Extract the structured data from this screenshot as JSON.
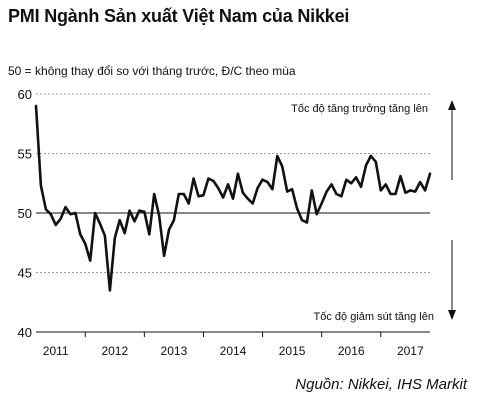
{
  "header": {
    "title": "PMI Ngành Sản xuất Việt Nam của Nikkei",
    "subtitle": "50 = không thay đổi so với tháng trước, Đ/C theo mùa"
  },
  "footer": {
    "source": "Nguồn: Nikkei, IHS Markit"
  },
  "colors": {
    "line": "#111111",
    "grid": "#9a9a9a",
    "baseline": "#111111",
    "arrow": "#111111"
  },
  "chart_data": {
    "type": "line",
    "title": "PMI Ngành Sản xuất Việt Nam của Nikkei",
    "subtitle": "50 = không thay đổi so với tháng trước, Đ/C theo mùa",
    "xlabel": "",
    "ylabel": "",
    "xlim": [
      "2011-03",
      "2017-11"
    ],
    "ylim": [
      40,
      60
    ],
    "yticks": [
      40,
      45,
      50,
      55,
      60
    ],
    "xticks": [
      "2011",
      "2012",
      "2013",
      "2014",
      "2015",
      "2016",
      "2017"
    ],
    "reference_line": 50,
    "grid": "horizontal dashed",
    "legend": "none",
    "annotations": [
      {
        "text": "Tốc độ tăng trưởng tăng lên",
        "direction": "up"
      },
      {
        "text": "Tốc độ giảm sút tăng lên",
        "direction": "down"
      }
    ],
    "series": [
      {
        "x": [
          "2011-03",
          "2011-04",
          "2011-05",
          "2011-06",
          "2011-07",
          "2011-08",
          "2011-09",
          "2011-10",
          "2011-11",
          "2011-12",
          "2012-01",
          "2012-02",
          "2012-03",
          "2012-04",
          "2012-05",
          "2012-06",
          "2012-07",
          "2012-08",
          "2012-09",
          "2012-10",
          "2012-11",
          "2012-12",
          "2013-01",
          "2013-02",
          "2013-03",
          "2013-04",
          "2013-05",
          "2013-06",
          "2013-07",
          "2013-08",
          "2013-09",
          "2013-10",
          "2013-11",
          "2013-12",
          "2014-01",
          "2014-02",
          "2014-03",
          "2014-04",
          "2014-05",
          "2014-06",
          "2014-07",
          "2014-08",
          "2014-09",
          "2014-10",
          "2014-11",
          "2014-12",
          "2015-01",
          "2015-02",
          "2015-03",
          "2015-04",
          "2015-05",
          "2015-06",
          "2015-07",
          "2015-08",
          "2015-09",
          "2015-10",
          "2015-11",
          "2015-12",
          "2016-01",
          "2016-02",
          "2016-03",
          "2016-04",
          "2016-05",
          "2016-06",
          "2016-07",
          "2016-08",
          "2016-09",
          "2016-10",
          "2016-11",
          "2016-12",
          "2017-01",
          "2017-02",
          "2017-03",
          "2017-04",
          "2017-05",
          "2017-06",
          "2017-07",
          "2017-08",
          "2017-09",
          "2017-10",
          "2017-11"
        ],
        "values": [
          59.0,
          52.3,
          50.3,
          49.9,
          49.0,
          49.5,
          50.5,
          49.9,
          50.0,
          48.2,
          47.4,
          46.0,
          50.0,
          49.1,
          48.1,
          43.5,
          47.9,
          49.4,
          48.3,
          50.2,
          49.3,
          50.2,
          50.1,
          48.2,
          51.6,
          49.8,
          46.4,
          48.6,
          49.4,
          51.6,
          51.6,
          50.8,
          52.9,
          51.4,
          51.5,
          52.9,
          52.7,
          52.1,
          51.3,
          52.4,
          51.2,
          53.3,
          51.7,
          51.2,
          50.8,
          52.1,
          52.8,
          52.6,
          52.0,
          54.8,
          53.9,
          51.8,
          52.0,
          50.4,
          49.4,
          49.2,
          51.9,
          49.9,
          50.8,
          51.8,
          52.4,
          51.6,
          51.4,
          52.8,
          52.5,
          53.0,
          52.2,
          54.0,
          54.8,
          54.3,
          51.9,
          52.4,
          51.6,
          51.6,
          53.1,
          51.7,
          51.9,
          51.8,
          52.6,
          51.9,
          53.3
        ]
      }
    ]
  }
}
